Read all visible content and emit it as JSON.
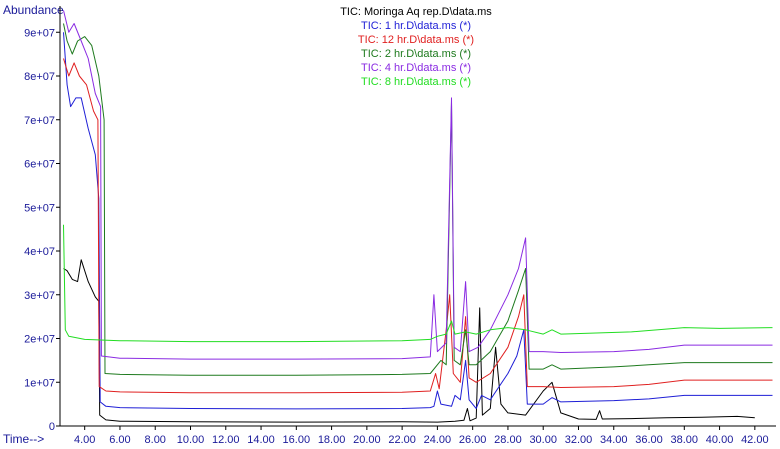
{
  "chart_data": {
    "type": "line",
    "title": "TIC: Moringa Aq rep.D\\data.ms",
    "ylabel": "Abundance",
    "xlabel": "Time-->",
    "xlim": [
      2.6,
      43.2
    ],
    "ylim": [
      0,
      96000000
    ],
    "x_ticks": [
      4,
      6,
      8,
      10,
      12,
      14,
      16,
      18,
      20,
      22,
      24,
      26,
      28,
      30,
      32,
      34,
      36,
      38,
      40,
      42
    ],
    "x_tick_labels": [
      "4.00",
      "6.00",
      "8.00",
      "10.00",
      "12.00",
      "14.00",
      "16.00",
      "18.00",
      "20.00",
      "22.00",
      "24.00",
      "26.00",
      "28.00",
      "30.00",
      "32.00",
      "34.00",
      "36.00",
      "38.00",
      "40.00",
      "42.00"
    ],
    "y_ticks": [
      0,
      10000000,
      20000000,
      30000000,
      40000000,
      50000000,
      60000000,
      70000000,
      80000000,
      90000000
    ],
    "y_tick_labels": [
      "0",
      "1e+07",
      "2e+07",
      "3e+07",
      "4e+07",
      "5e+07",
      "6e+07",
      "7e+07",
      "8e+07",
      "9e+07"
    ],
    "legend": [
      "TIC: 1 hr.D\\data.ms (*)",
      "TIC: 12 hr.D\\data.ms (*)",
      "TIC: 2 hr.D\\data.ms (*)",
      "TIC: 4 hr.D\\data.ms (*)",
      "TIC: 8 hr.D\\data.ms (*)"
    ],
    "legend_placement": "top-center",
    "colors": {
      "black": "#000000",
      "blue": "#1f1fd6",
      "red": "#e02020",
      "darkgreen": "#1e7a1e",
      "purple": "#8a2be2",
      "green": "#22dd22"
    },
    "series": [
      {
        "name": "TIC: Moringa Aq rep.D\\data.ms",
        "color": "#000000",
        "points": [
          [
            2.8,
            36000000
          ],
          [
            3.0,
            35500000
          ],
          [
            3.3,
            33500000
          ],
          [
            3.6,
            33000000
          ],
          [
            3.8,
            38000000
          ],
          [
            4.2,
            33000000
          ],
          [
            4.6,
            29500000
          ],
          [
            4.8,
            28500000
          ],
          [
            4.85,
            2500000
          ],
          [
            5.2,
            1400000
          ],
          [
            6,
            1100000
          ],
          [
            10,
            950000
          ],
          [
            16,
            900000
          ],
          [
            22,
            950000
          ],
          [
            24,
            900000
          ],
          [
            25,
            1100000
          ],
          [
            25.5,
            1300000
          ],
          [
            25.7,
            4000000
          ],
          [
            25.85,
            1200000
          ],
          [
            26.2,
            1800000
          ],
          [
            26.4,
            27000000
          ],
          [
            26.55,
            2500000
          ],
          [
            27,
            4000000
          ],
          [
            27.3,
            18000000
          ],
          [
            27.6,
            5000000
          ],
          [
            28,
            3000000
          ],
          [
            29,
            2500000
          ],
          [
            30,
            8000000
          ],
          [
            30.5,
            10000000
          ],
          [
            31,
            3000000
          ],
          [
            32,
            1600000
          ],
          [
            33,
            1500000
          ],
          [
            33.2,
            3500000
          ],
          [
            33.35,
            1600000
          ],
          [
            35,
            1700000
          ],
          [
            37,
            1900000
          ],
          [
            39,
            2000000
          ],
          [
            41,
            2200000
          ],
          [
            42,
            1900000
          ]
        ]
      },
      {
        "name": "TIC: 1 hr.D\\data.ms (*)",
        "color": "#1f1fd6",
        "points": [
          [
            2.8,
            90000000
          ],
          [
            3.0,
            78000000
          ],
          [
            3.2,
            73000000
          ],
          [
            3.5,
            75000000
          ],
          [
            3.8,
            75000000
          ],
          [
            4.2,
            68000000
          ],
          [
            4.6,
            62000000
          ],
          [
            4.8,
            52000000
          ],
          [
            4.88,
            5500000
          ],
          [
            5.2,
            4500000
          ],
          [
            6,
            4200000
          ],
          [
            10,
            4000000
          ],
          [
            16,
            3900000
          ],
          [
            22,
            4000000
          ],
          [
            23.6,
            4200000
          ],
          [
            23.8,
            4500000
          ],
          [
            24,
            8000000
          ],
          [
            24.2,
            5000000
          ],
          [
            24.8,
            4500000
          ],
          [
            25,
            7000000
          ],
          [
            25.3,
            6000000
          ],
          [
            25.6,
            15000000
          ],
          [
            25.8,
            6000000
          ],
          [
            26.2,
            4000000
          ],
          [
            26.5,
            7000000
          ],
          [
            27,
            6000000
          ],
          [
            27.5,
            9000000
          ],
          [
            28,
            12000000
          ],
          [
            28.5,
            16000000
          ],
          [
            28.9,
            22000000
          ],
          [
            29.1,
            5000000
          ],
          [
            30,
            5000000
          ],
          [
            30.5,
            6500000
          ],
          [
            31,
            5500000
          ],
          [
            34,
            5800000
          ],
          [
            36,
            6200000
          ],
          [
            38,
            7000000
          ],
          [
            40,
            7000000
          ],
          [
            43,
            7000000
          ]
        ]
      },
      {
        "name": "TIC: 12 hr.D\\data.ms (*)",
        "color": "#e02020",
        "points": [
          [
            2.8,
            84000000
          ],
          [
            3.1,
            80000000
          ],
          [
            3.4,
            83000000
          ],
          [
            3.7,
            80000000
          ],
          [
            4.1,
            78000000
          ],
          [
            4.5,
            72000000
          ],
          [
            4.75,
            70000000
          ],
          [
            4.82,
            9000000
          ],
          [
            5.2,
            8000000
          ],
          [
            6,
            7800000
          ],
          [
            10,
            7600000
          ],
          [
            16,
            7600000
          ],
          [
            22,
            7700000
          ],
          [
            23.6,
            8000000
          ],
          [
            23.9,
            12000000
          ],
          [
            24.1,
            8500000
          ],
          [
            24.5,
            22000000
          ],
          [
            24.7,
            30000000
          ],
          [
            24.9,
            12000000
          ],
          [
            25.3,
            10000000
          ],
          [
            25.6,
            25000000
          ],
          [
            25.8,
            11000000
          ],
          [
            26.2,
            10000000
          ],
          [
            27,
            12000000
          ],
          [
            28,
            18000000
          ],
          [
            28.6,
            25000000
          ],
          [
            28.9,
            30000000
          ],
          [
            29.1,
            9000000
          ],
          [
            30,
            9000000
          ],
          [
            31,
            8800000
          ],
          [
            34,
            9000000
          ],
          [
            36,
            9500000
          ],
          [
            38,
            10500000
          ],
          [
            40,
            10500000
          ],
          [
            43,
            10500000
          ]
        ]
      },
      {
        "name": "TIC: 2 hr.D\\data.ms (*)",
        "color": "#1e7a1e",
        "points": [
          [
            2.8,
            92000000
          ],
          [
            3.0,
            88000000
          ],
          [
            3.3,
            85000000
          ],
          [
            3.6,
            88000000
          ],
          [
            4.0,
            89000000
          ],
          [
            4.4,
            87000000
          ],
          [
            4.8,
            80000000
          ],
          [
            5.1,
            70000000
          ],
          [
            5.15,
            12000000
          ],
          [
            6,
            11800000
          ],
          [
            10,
            11600000
          ],
          [
            16,
            11600000
          ],
          [
            22,
            11800000
          ],
          [
            23.6,
            12000000
          ],
          [
            24.2,
            15000000
          ],
          [
            24.5,
            14000000
          ],
          [
            24.8,
            74000000
          ],
          [
            24.95,
            15000000
          ],
          [
            25.3,
            14000000
          ],
          [
            25.6,
            22000000
          ],
          [
            25.8,
            14000000
          ],
          [
            26.2,
            14000000
          ],
          [
            27,
            17000000
          ],
          [
            28,
            24000000
          ],
          [
            28.6,
            31000000
          ],
          [
            29.0,
            36000000
          ],
          [
            29.2,
            13000000
          ],
          [
            30,
            13000000
          ],
          [
            30.5,
            14000000
          ],
          [
            31,
            13000000
          ],
          [
            34,
            13500000
          ],
          [
            36,
            14000000
          ],
          [
            38,
            14500000
          ],
          [
            40,
            14500000
          ],
          [
            43,
            14500000
          ]
        ]
      },
      {
        "name": "TIC: 4 hr.D\\data.ms (*)",
        "color": "#8a2be2",
        "points": [
          [
            2.8,
            95000000
          ],
          [
            3.1,
            90000000
          ],
          [
            3.4,
            92000000
          ],
          [
            3.8,
            88000000
          ],
          [
            4.2,
            84000000
          ],
          [
            4.6,
            76000000
          ],
          [
            4.9,
            73000000
          ],
          [
            4.95,
            16000000
          ],
          [
            6,
            15500000
          ],
          [
            10,
            15300000
          ],
          [
            16,
            15300000
          ],
          [
            22,
            15400000
          ],
          [
            23.6,
            15800000
          ],
          [
            23.8,
            30000000
          ],
          [
            24.0,
            17000000
          ],
          [
            24.5,
            19000000
          ],
          [
            24.8,
            75000000
          ],
          [
            24.95,
            18000000
          ],
          [
            25.3,
            17000000
          ],
          [
            25.6,
            33000000
          ],
          [
            25.8,
            17000000
          ],
          [
            26.3,
            18000000
          ],
          [
            27,
            22000000
          ],
          [
            28,
            30000000
          ],
          [
            28.6,
            36000000
          ],
          [
            29.0,
            43000000
          ],
          [
            29.2,
            17000000
          ],
          [
            30,
            17000000
          ],
          [
            31,
            16800000
          ],
          [
            34,
            17000000
          ],
          [
            36,
            17500000
          ],
          [
            38,
            18500000
          ],
          [
            40,
            18500000
          ],
          [
            43,
            18500000
          ]
        ]
      },
      {
        "name": "TIC: 8 hr.D\\data.ms (*)",
        "color": "#22dd22",
        "points": [
          [
            2.8,
            46000000
          ],
          [
            2.9,
            22000000
          ],
          [
            3.1,
            20500000
          ],
          [
            4,
            19800000
          ],
          [
            6,
            19500000
          ],
          [
            10,
            19300000
          ],
          [
            16,
            19300000
          ],
          [
            22,
            19500000
          ],
          [
            23.6,
            19800000
          ],
          [
            24.0,
            20500000
          ],
          [
            24.5,
            21000000
          ],
          [
            24.8,
            24000000
          ],
          [
            25,
            21000000
          ],
          [
            25.6,
            21500000
          ],
          [
            26.2,
            21000000
          ],
          [
            27,
            22000000
          ],
          [
            28,
            22500000
          ],
          [
            29,
            22000000
          ],
          [
            30,
            21000000
          ],
          [
            30.5,
            22000000
          ],
          [
            31,
            21000000
          ],
          [
            35,
            21500000
          ],
          [
            38,
            22500000
          ],
          [
            40,
            22300000
          ],
          [
            43,
            22500000
          ]
        ]
      }
    ]
  }
}
